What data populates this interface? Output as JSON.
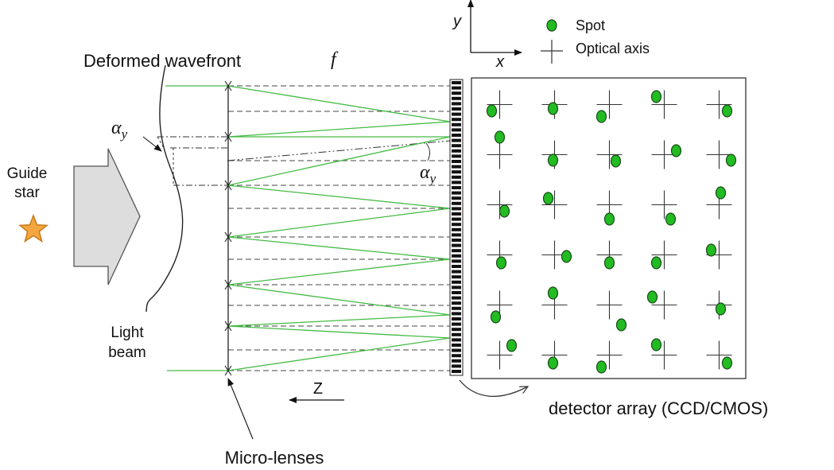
{
  "labels": {
    "deformed_wavefront": "Deformed wavefront",
    "focal_symbol": "f",
    "alpha_left": "α",
    "alpha_right": "α",
    "alpha_subscript": "y",
    "guide_star_line1": "Guide",
    "guide_star_line2": "star",
    "light_beam_line1": "Light",
    "light_beam_line2": "beam",
    "z_axis": "Z",
    "micro_lenses": "Micro-lenses",
    "detector_array": "detector array (CCD/CMOS)",
    "axis_x": "x",
    "axis_y": "y"
  },
  "legend": {
    "spot": "Spot",
    "optical_axis": "Optical axis"
  },
  "detector": {
    "rows": 6,
    "cols": 5,
    "spot_offsets": [
      [
        [
          -10,
          8
        ],
        [
          -2,
          5
        ],
        [
          -10,
          15
        ],
        [
          -10,
          -10
        ],
        [
          10,
          8
        ]
      ],
      [
        [
          0,
          -22
        ],
        [
          -2,
          7
        ],
        [
          8,
          8
        ],
        [
          15,
          -5
        ],
        [
          15,
          7
        ]
      ],
      [
        [
          6,
          8
        ],
        [
          -8,
          -8
        ],
        [
          0,
          18
        ],
        [
          8,
          18
        ],
        [
          2,
          -15
        ]
      ],
      [
        [
          2,
          10
        ],
        [
          15,
          2
        ],
        [
          0,
          10
        ],
        [
          -10,
          10
        ],
        [
          -10,
          -6
        ]
      ],
      [
        [
          -5,
          15
        ],
        [
          -2,
          -15
        ],
        [
          15,
          25
        ],
        [
          -15,
          -10
        ],
        [
          2,
          5
        ]
      ],
      [
        [
          15,
          -12
        ],
        [
          -2,
          10
        ],
        [
          -10,
          15
        ],
        [
          -10,
          -13
        ],
        [
          10,
          10
        ]
      ]
    ],
    "spot_color": "#22bb22",
    "spot_outline": "#1a4a1a"
  },
  "colors": {
    "rays": "#44bb44",
    "guide_star": "#f4a640",
    "arrow_fill": "#dddddd"
  }
}
